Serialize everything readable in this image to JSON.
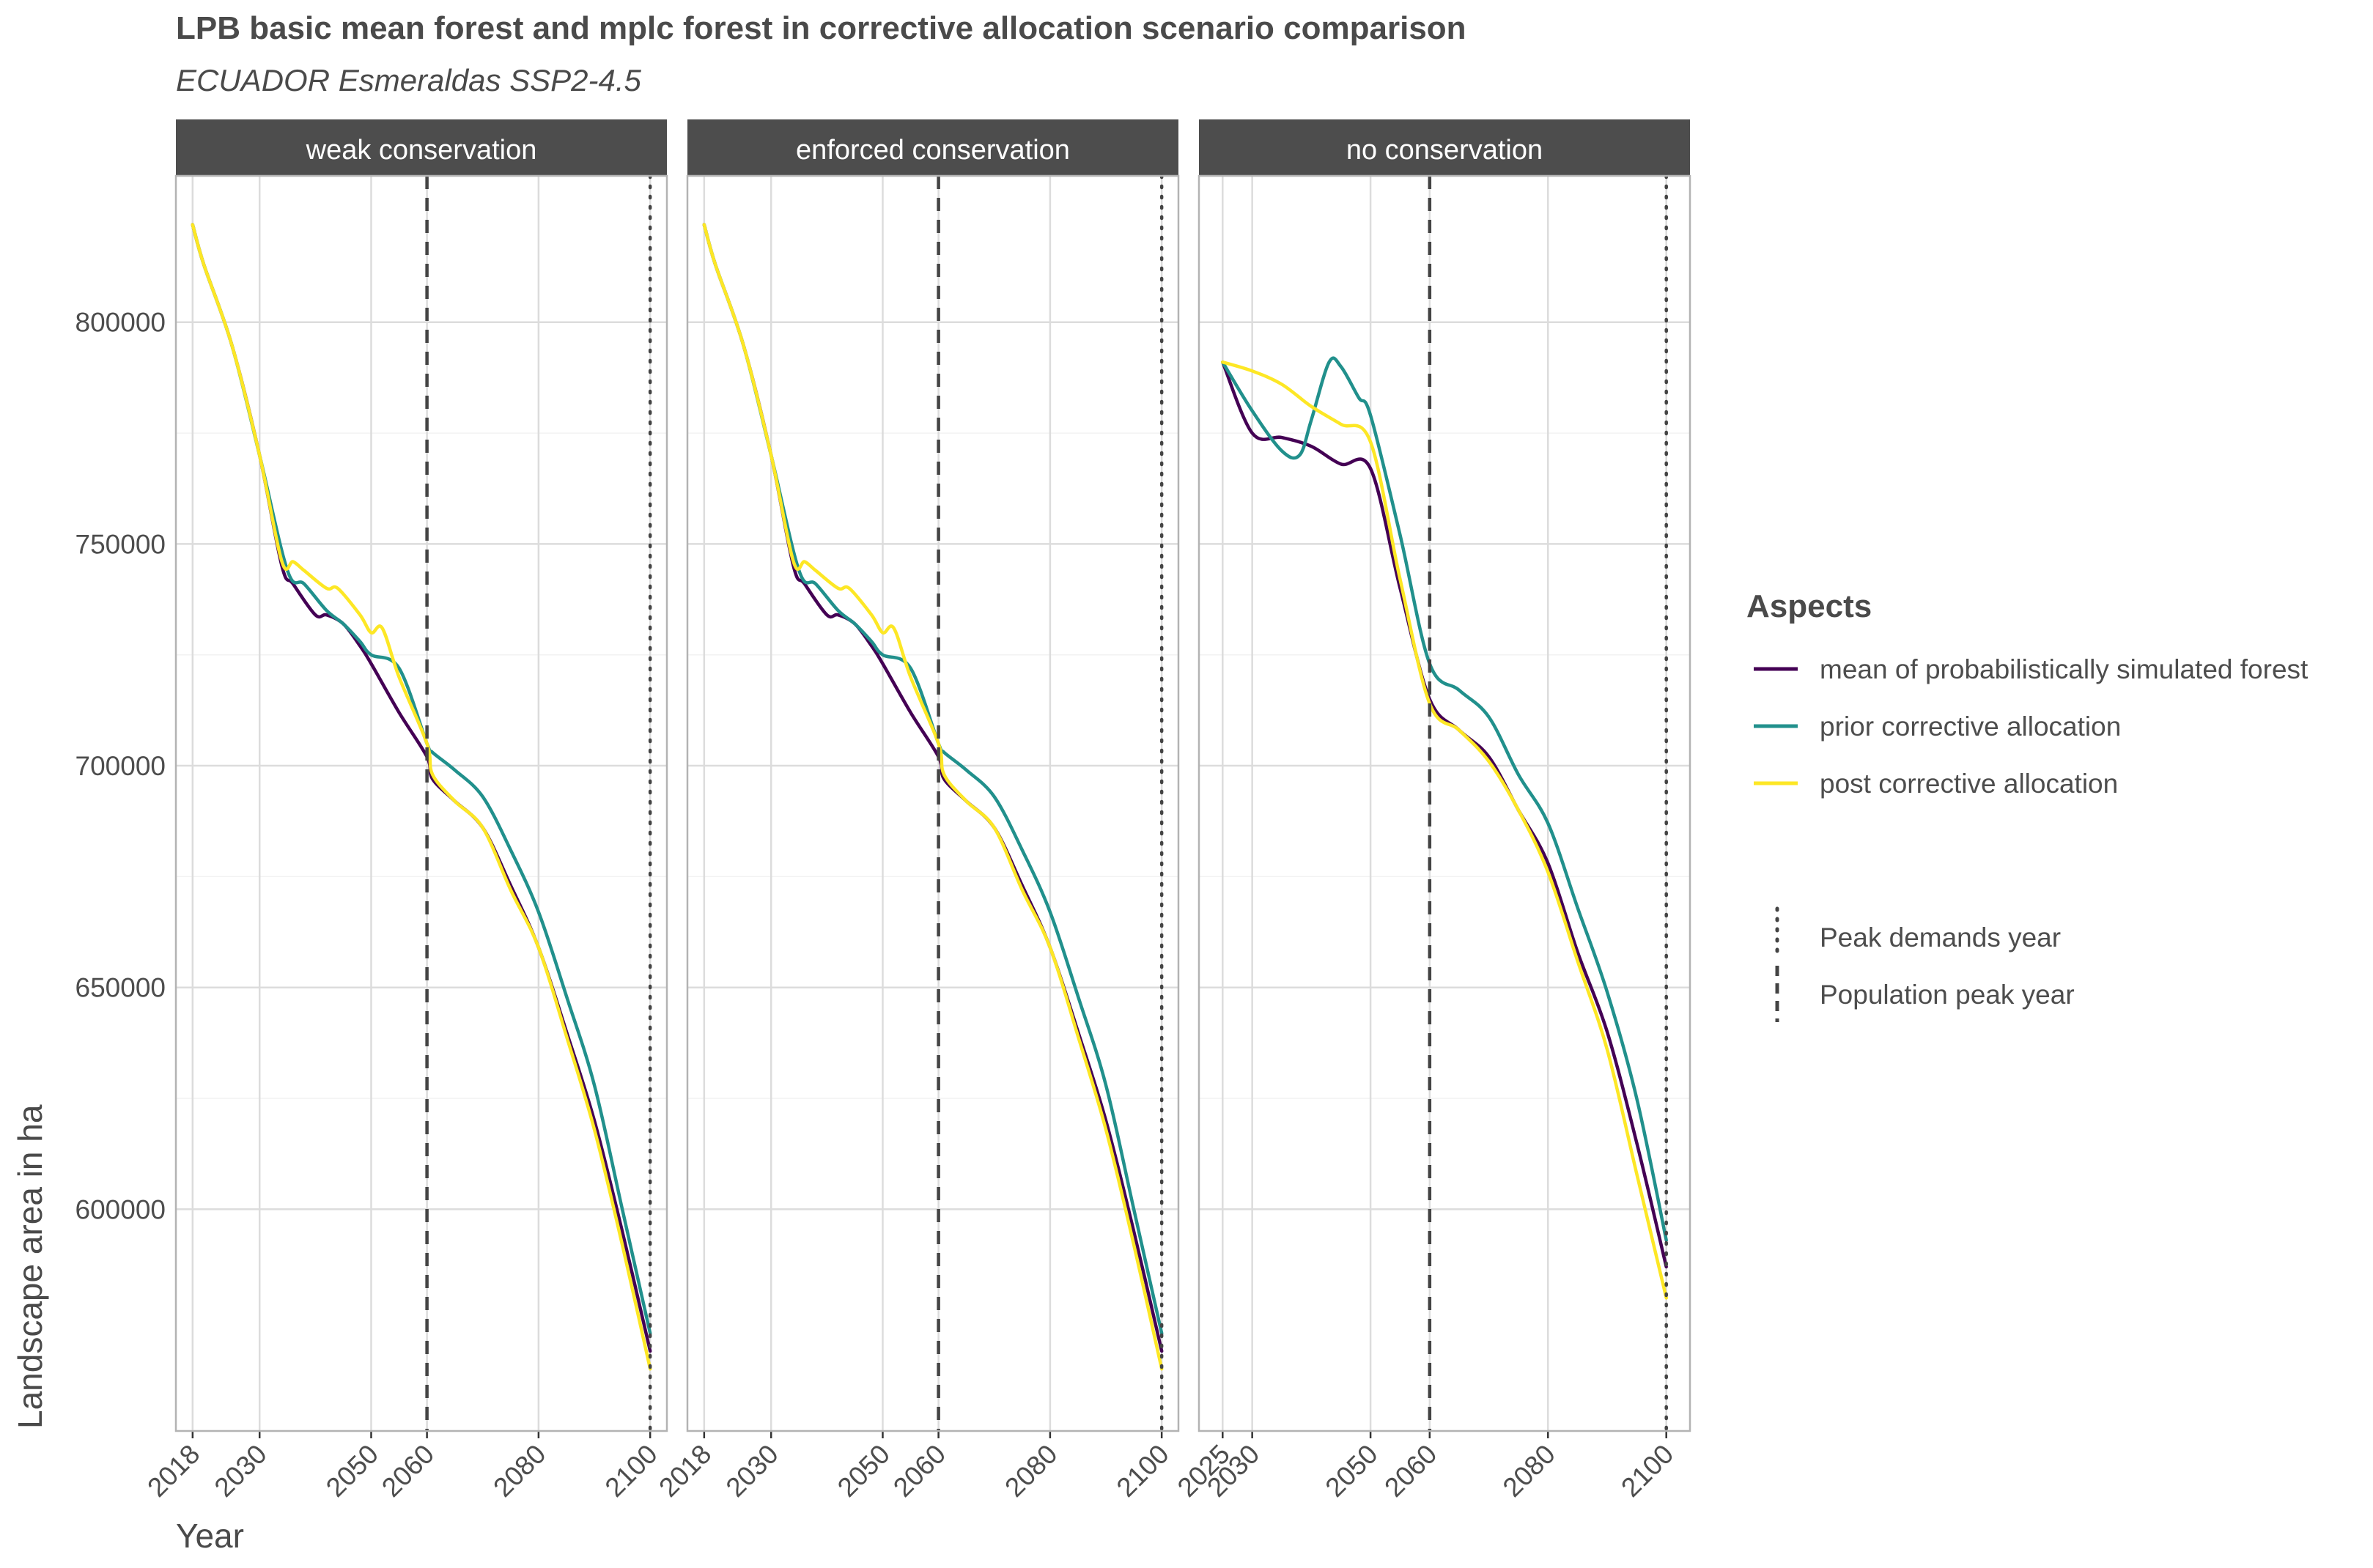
{
  "title": "LPB basic mean forest and mplc forest in corrective allocation scenario comparison",
  "subtitle": "ECUADOR Esmeraldas SSP2-4.5",
  "chart_data": {
    "type": "line",
    "xlabel": "Year",
    "ylabel": "Landscape area in ha",
    "ylim": [
      550000,
      833000
    ],
    "y_ticks": [
      600000,
      650000,
      700000,
      750000,
      800000
    ],
    "grid": true,
    "legend": {
      "title": "Aspects",
      "placement": "right",
      "series_entries": [
        {
          "name": "mean of probabilistically simulated forest",
          "color": "#440154"
        },
        {
          "name": "prior corrective allocation",
          "color": "#21908C"
        },
        {
          "name": "post corrective allocation",
          "color": "#FDE725"
        }
      ],
      "line_entries": [
        {
          "name": "Peak demands year",
          "style": "dotted"
        },
        {
          "name": "Population peak year",
          "style": "dashed"
        }
      ]
    },
    "panels": [
      {
        "strip": "weak conservation",
        "xlim": [
          2015,
          2103
        ],
        "x_ticks": [
          2018,
          2030,
          2050,
          2060,
          2080,
          2100
        ],
        "population_peak_year": 2060,
        "peak_demands_year": 2100,
        "series": [
          {
            "name": "mean of probabilistically simulated forest",
            "color": "#440154",
            "x": [
              2018,
              2020,
              2025,
              2030,
              2034,
              2036,
              2040,
              2042,
              2045,
              2048,
              2050,
              2055,
              2060,
              2061,
              2065,
              2070,
              2075,
              2080,
              2085,
              2090,
              2095,
              2100
            ],
            "y": [
              822000,
              813000,
              795000,
              770000,
              745000,
              741000,
              734000,
              734000,
              732000,
              727000,
              723000,
              712000,
              702000,
              697000,
              692000,
              686000,
              673000,
              659000,
              640000,
              620000,
              595000,
              568000
            ]
          },
          {
            "name": "prior corrective allocation",
            "color": "#21908C",
            "x": [
              2018,
              2020,
              2025,
              2030,
              2035,
              2038,
              2042,
              2045,
              2048,
              2050,
              2055,
              2060,
              2061,
              2065,
              2070,
              2075,
              2080,
              2085,
              2090,
              2095,
              2100
            ],
            "y": [
              822000,
              813000,
              795000,
              770000,
              744000,
              741000,
              735000,
              732000,
              728000,
              725000,
              722000,
              705000,
              703000,
              699000,
              693000,
              681000,
              667000,
              648000,
              628000,
              600000,
              572000
            ]
          },
          {
            "name": "post corrective allocation",
            "color": "#FDE725",
            "x": [
              2018,
              2020,
              2025,
              2030,
              2034,
              2036,
              2038,
              2042,
              2044,
              2048,
              2050,
              2052,
              2055,
              2060,
              2061,
              2065,
              2070,
              2075,
              2080,
              2085,
              2090,
              2095,
              2100
            ],
            "y": [
              822000,
              813000,
              795000,
              770000,
              746000,
              746000,
              744000,
              740000,
              740000,
              734000,
              730000,
              731000,
              720000,
              705000,
              698000,
              692000,
              686000,
              672000,
              659000,
              639000,
              618000,
              592000,
              564000
            ]
          }
        ]
      },
      {
        "strip": "enforced conservation",
        "xlim": [
          2015,
          2103
        ],
        "x_ticks": [
          2018,
          2030,
          2050,
          2060,
          2080,
          2100
        ],
        "population_peak_year": 2060,
        "peak_demands_year": 2100,
        "series": [
          {
            "name": "mean of probabilistically simulated forest",
            "color": "#440154",
            "x": [
              2018,
              2020,
              2025,
              2030,
              2034,
              2036,
              2040,
              2042,
              2045,
              2048,
              2050,
              2055,
              2060,
              2061,
              2065,
              2070,
              2075,
              2080,
              2085,
              2090,
              2095,
              2100
            ],
            "y": [
              822000,
              813000,
              795000,
              770000,
              745000,
              741000,
              734000,
              734000,
              732000,
              727000,
              723000,
              712000,
              702000,
              697000,
              692000,
              686000,
              673000,
              659000,
              640000,
              620000,
              595000,
              568000
            ]
          },
          {
            "name": "prior corrective allocation",
            "color": "#21908C",
            "x": [
              2018,
              2020,
              2025,
              2030,
              2035,
              2038,
              2042,
              2045,
              2048,
              2050,
              2055,
              2060,
              2061,
              2065,
              2070,
              2075,
              2080,
              2085,
              2090,
              2095,
              2100
            ],
            "y": [
              822000,
              813000,
              795000,
              770000,
              744000,
              741000,
              735000,
              732000,
              728000,
              725000,
              722000,
              705000,
              703000,
              699000,
              693000,
              681000,
              667000,
              648000,
              628000,
              600000,
              572000
            ]
          },
          {
            "name": "post corrective allocation",
            "color": "#FDE725",
            "x": [
              2018,
              2020,
              2025,
              2030,
              2034,
              2036,
              2038,
              2042,
              2044,
              2048,
              2050,
              2052,
              2055,
              2060,
              2061,
              2065,
              2070,
              2075,
              2080,
              2085,
              2090,
              2095,
              2100
            ],
            "y": [
              822000,
              813000,
              795000,
              770000,
              746000,
              746000,
              744000,
              740000,
              740000,
              734000,
              730000,
              731000,
              720000,
              705000,
              698000,
              692000,
              686000,
              672000,
              659000,
              639000,
              618000,
              592000,
              564000
            ]
          }
        ]
      },
      {
        "strip": "no conservation",
        "xlim": [
          2021,
          2104
        ],
        "x_ticks": [
          2025,
          2030,
          2050,
          2060,
          2080,
          2100
        ],
        "population_peak_year": 2060,
        "peak_demands_year": 2100,
        "series": [
          {
            "name": "mean of probabilistically simulated forest",
            "color": "#440154",
            "x": [
              2025,
              2030,
              2035,
              2040,
              2045,
              2050,
              2055,
              2060,
              2065,
              2070,
              2075,
              2080,
              2085,
              2090,
              2095,
              2100
            ],
            "y": [
              791000,
              775000,
              774000,
              772000,
              768000,
              767000,
              740000,
              715000,
              708000,
              702000,
              690000,
              678000,
              658000,
              640000,
              615000,
              587000
            ]
          },
          {
            "name": "prior corrective allocation",
            "color": "#21908C",
            "x": [
              2025,
              2030,
              2035,
              2038,
              2040,
              2043,
              2045,
              2048,
              2050,
              2055,
              2060,
              2065,
              2070,
              2075,
              2080,
              2085,
              2090,
              2095,
              2100
            ],
            "y": [
              791000,
              780000,
              771000,
              770000,
              778000,
              791000,
              790000,
              783000,
              779000,
              752000,
              723000,
              717000,
              711000,
              698000,
              687000,
              668000,
              649000,
              625000,
              593000
            ]
          },
          {
            "name": "post corrective allocation",
            "color": "#FDE725",
            "x": [
              2025,
              2030,
              2035,
              2040,
              2045,
              2050,
              2055,
              2060,
              2065,
              2070,
              2075,
              2080,
              2085,
              2090,
              2095,
              2100
            ],
            "y": [
              791000,
              789000,
              786000,
              781000,
              777000,
              773000,
              742000,
              714000,
              708000,
              701000,
              690000,
              676000,
              656000,
              636000,
              608000,
              580000
            ]
          }
        ]
      }
    ]
  }
}
